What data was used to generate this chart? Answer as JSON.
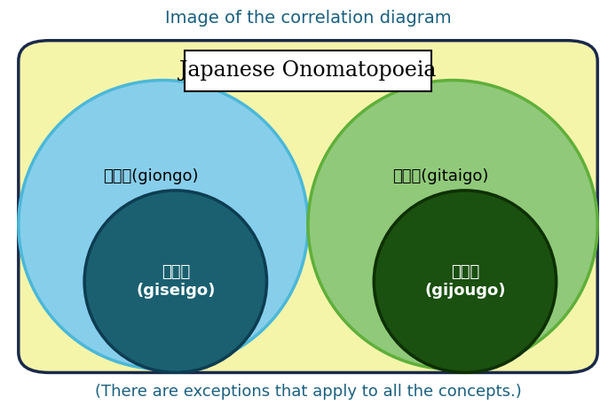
{
  "title": "Image of the correlation diagram",
  "title_color": "#1a6080",
  "title_fontsize": 14,
  "outer_rect_edgecolor": "#1a2a4a",
  "outer_rect_facecolor": "#F5F5AA",
  "jp_ono_label": "Japanese Onomatopoeia",
  "jp_ono_fontsize": 17,
  "left_outer_label": "擬音語(giongo)",
  "left_outer_color": "#87CEEB",
  "left_outer_edge": "#4BB8D8",
  "left_inner_label": "擬声語\n(giseigo)",
  "left_inner_color": "#1A6070",
  "left_inner_edge": "#0d3d52",
  "right_outer_label": "擬態語(gitaigo)",
  "right_outer_color": "#90C97A",
  "right_outer_edge": "#5FAF3A",
  "right_inner_label": "擬情語\n(gijougo)",
  "right_inner_color": "#1A5010",
  "right_inner_edge": "#0d3000",
  "footnote": "(There are exceptions that apply to all the concepts.)",
  "footnote_color": "#1a6080",
  "footnote_fontsize": 13,
  "fig_width": 6.94,
  "fig_height": 4.57
}
